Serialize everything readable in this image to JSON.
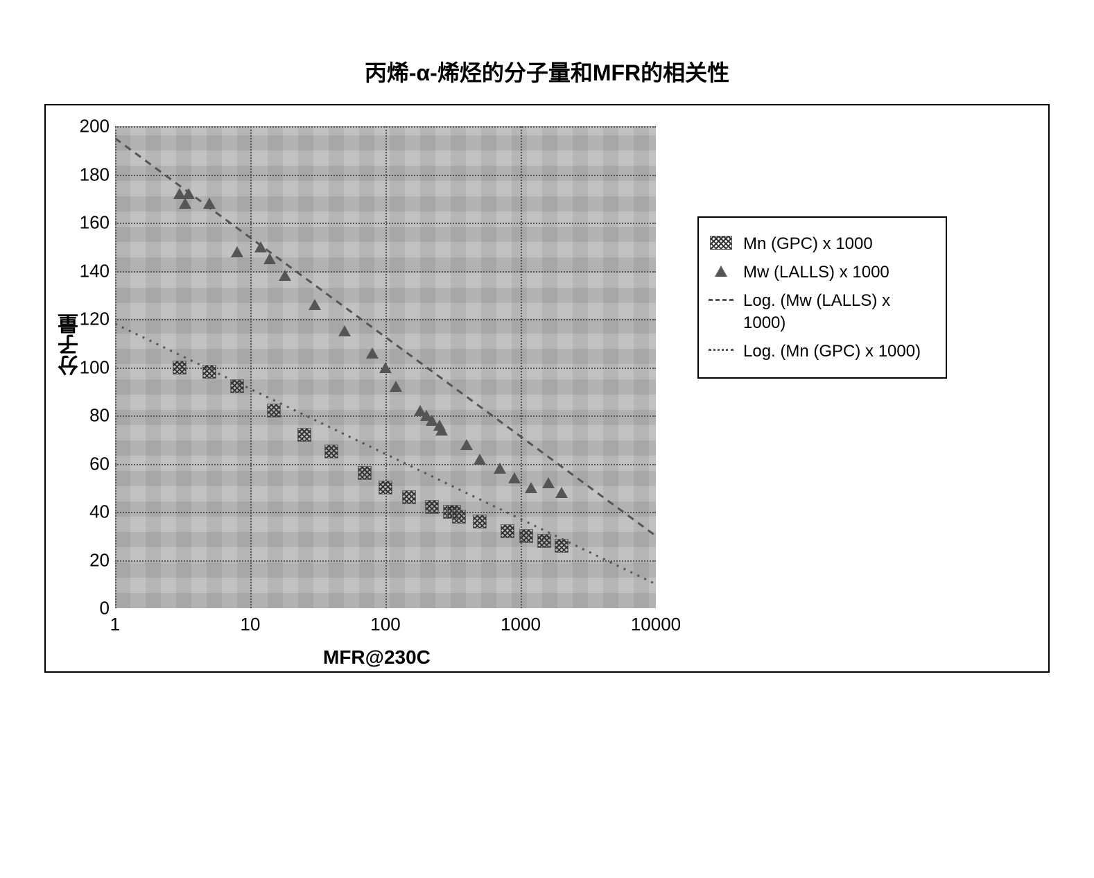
{
  "title_text": "丙烯-α-烯烃的分子量和MFR的相关性",
  "chart": {
    "type": "scatter",
    "xlabel": "MFR@230C",
    "ylabel": "分子量",
    "x_scale": "log",
    "xlim": [
      1,
      10000
    ],
    "xtick_values": [
      1,
      10,
      100,
      1000,
      10000
    ],
    "xtick_labels": [
      "1",
      "10",
      "100",
      "1000",
      "10000"
    ],
    "ylim": [
      0,
      200
    ],
    "ytick_step": 20,
    "ytick_values": [
      0,
      20,
      40,
      60,
      80,
      100,
      120,
      140,
      160,
      180,
      200
    ],
    "plot_bg": "#cccccc",
    "grid_color": "#555555",
    "frame_border_color": "#000000",
    "background_color": "#ffffff",
    "title_fontsize": 32,
    "tick_fontsize": 26,
    "label_fontsize": 30,
    "series": [
      {
        "name": "Mw (LALLS) x 1000",
        "marker": "triangle",
        "color": "#555555",
        "points": [
          [
            3,
            172
          ],
          [
            3.5,
            172
          ],
          [
            3.3,
            168
          ],
          [
            5,
            168
          ],
          [
            8,
            148
          ],
          [
            12,
            150
          ],
          [
            14,
            145
          ],
          [
            18,
            138
          ],
          [
            30,
            126
          ],
          [
            50,
            115
          ],
          [
            80,
            106
          ],
          [
            100,
            100
          ],
          [
            120,
            92
          ],
          [
            180,
            82
          ],
          [
            200,
            80
          ],
          [
            220,
            78
          ],
          [
            250,
            76
          ],
          [
            260,
            74
          ],
          [
            400,
            68
          ],
          [
            500,
            62
          ],
          [
            700,
            58
          ],
          [
            900,
            54
          ],
          [
            1200,
            50
          ],
          [
            1600,
            52
          ],
          [
            2000,
            48
          ]
        ]
      },
      {
        "name": "Mn (GPC) x 1000",
        "marker": "hatch",
        "color": "#333333",
        "points": [
          [
            3,
            100
          ],
          [
            5,
            98
          ],
          [
            8,
            92
          ],
          [
            15,
            82
          ],
          [
            25,
            72
          ],
          [
            40,
            65
          ],
          [
            70,
            56
          ],
          [
            100,
            50
          ],
          [
            150,
            46
          ],
          [
            220,
            42
          ],
          [
            300,
            40
          ],
          [
            320,
            40
          ],
          [
            350,
            38
          ],
          [
            500,
            36
          ],
          [
            800,
            32
          ],
          [
            1100,
            30
          ],
          [
            1500,
            28
          ],
          [
            2000,
            26
          ]
        ]
      }
    ],
    "trendlines": [
      {
        "name": "Log. (Mw (LALLS) x 1000)",
        "style": "dash1",
        "color": "#555555",
        "points": [
          [
            1,
            195
          ],
          [
            10000,
            30
          ]
        ]
      },
      {
        "name": "Log. (Mn (GPC) x 1000)",
        "style": "dash2",
        "color": "#555555",
        "points": [
          [
            1,
            118
          ],
          [
            10000,
            10
          ]
        ]
      }
    ]
  },
  "legend": {
    "items": [
      {
        "swatch": "hatch",
        "label": "Mn (GPC) x 1000"
      },
      {
        "swatch": "triangle",
        "label": "Mw (LALLS) x 1000"
      },
      {
        "swatch": "dash1",
        "label": "Log. (Mw (LALLS) x 1000)"
      },
      {
        "swatch": "dash2",
        "label": "Log. (Mn (GPC) x 1000)"
      }
    ]
  }
}
